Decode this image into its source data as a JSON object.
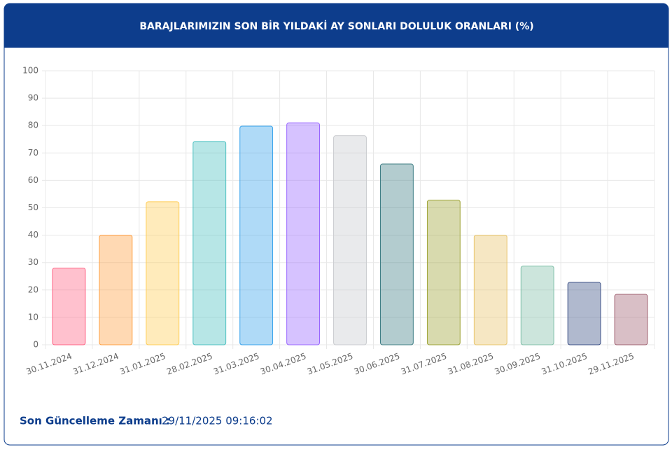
{
  "chart_data": {
    "type": "bar",
    "title": "BARAJLARIMIZIN SON BİR YILDAKİ AY SONLARI DOLULUK ORANLARI (%)",
    "categories": [
      "30.11.2024",
      "31.12.2024",
      "31.01.2025",
      "28.02.2025",
      "31.03.2025",
      "30.04.2025",
      "31.05.2025",
      "30.06.2025",
      "31.07.2025",
      "31.08.2025",
      "30.09.2025",
      "31.10.2025",
      "29.11.2025"
    ],
    "values": [
      28,
      40,
      52.2,
      74.2,
      79.8,
      81,
      76.3,
      66,
      52.8,
      40,
      28.7,
      22.8,
      18.4
    ],
    "colors": [
      "#ff6384",
      "#ff9f40",
      "#ffcd56",
      "#4bc0c0",
      "#36a2eb",
      "#9966ff",
      "#c9cbcf",
      "#407f86",
      "#9da334",
      "#e8c46a",
      "#7fbfa8",
      "#3a4f85",
      "#a06070"
    ],
    "ylim": [
      0,
      100
    ],
    "yticks": [
      0,
      10,
      20,
      30,
      40,
      50,
      60,
      70,
      80,
      90,
      100
    ],
    "grid": true
  },
  "footer": {
    "label": "Son Güncelleme Zamanı :",
    "value": "29/11/2025 09:16:02"
  }
}
